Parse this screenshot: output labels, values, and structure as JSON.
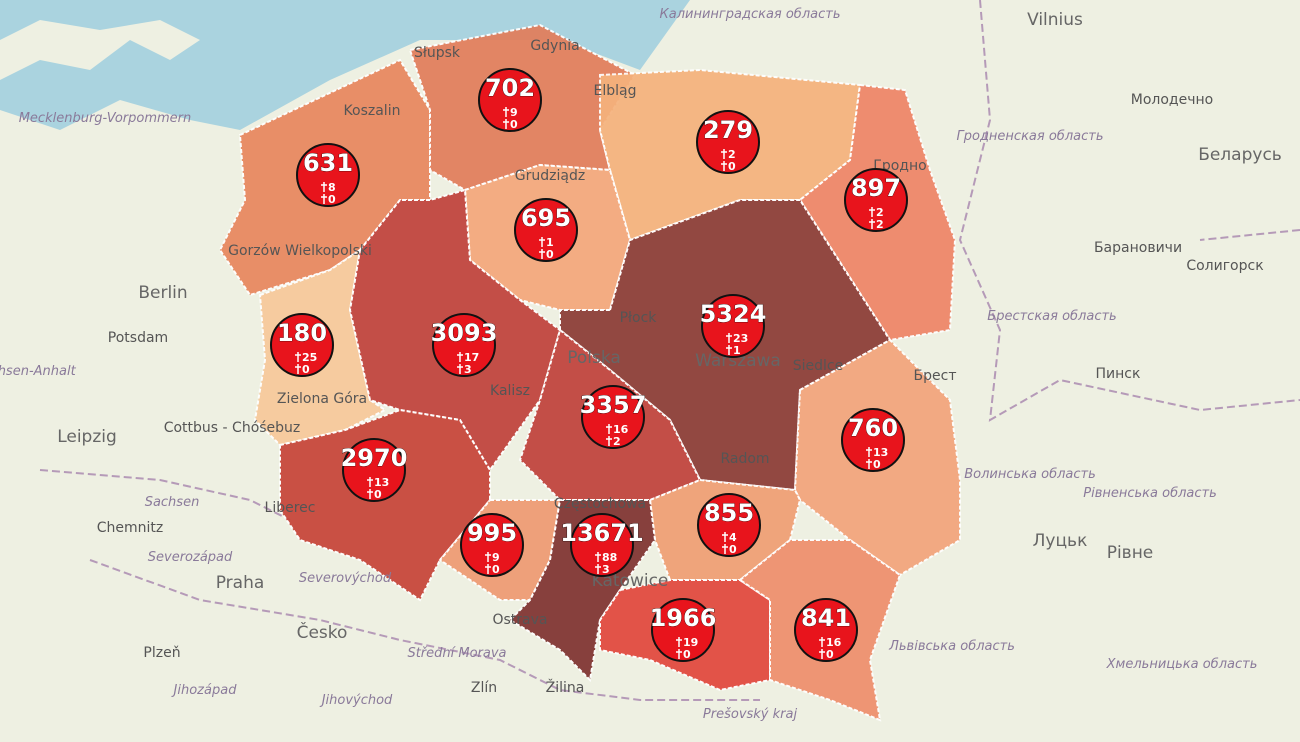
{
  "labels": [
    "Vilnius",
    "Беларусь",
    "Молодечно",
    "Гродненская область",
    "Гродно",
    "Барановичи",
    "Солигорск",
    "Брестская область",
    "Пинск",
    "Брест",
    "Волинська область",
    "Рівненська область",
    "Луцьк",
    "Рівне",
    "Львівська область",
    "Хмельницька область",
    "Калининградская область",
    "Mecklenburg-Vorpommern",
    "Berlin",
    "Potsdam",
    "Sachsen-Anhalt",
    "Leipzig",
    "Cottbus - Chóśebuz",
    "Sachsen",
    "Chemnitz",
    "Severozápad",
    "Praha",
    "Česko",
    "Plzeň",
    "Jihozápad",
    "Jihovýchod",
    "Zlín",
    "Žilina",
    "Střední Morava",
    "Ostrava",
    "Prešovský kraj",
    "Severovýchod",
    "Słupsk",
    "Gdynia",
    "Koszalin",
    "Elbląg",
    "Grudziądz",
    "Płock",
    "Warszawa",
    "Siedlce",
    "Polska",
    "Kalisz",
    "Radom",
    "Zielona Góra",
    "Częstochowa",
    "Katowice",
    "Gorzów Wielkopolski",
    "Liberec"
  ],
  "markers": [
    {
      "cases": 631,
      "deaths": 8,
      "second": 0
    },
    {
      "cases": 702,
      "deaths": 9,
      "second": 0
    },
    {
      "cases": 279,
      "deaths": 2,
      "second": 0
    },
    {
      "cases": 897,
      "deaths": 2,
      "second": 2
    },
    {
      "cases": 695,
      "deaths": 1,
      "second": 0
    },
    {
      "cases": 180,
      "deaths": 25,
      "second": 0
    },
    {
      "cases": 3093,
      "deaths": 17,
      "second": 3
    },
    {
      "cases": 5324,
      "deaths": 23,
      "second": 1
    },
    {
      "cases": 3357,
      "deaths": 16,
      "second": 2
    },
    {
      "cases": 2970,
      "deaths": 13,
      "second": 0
    },
    {
      "cases": 760,
      "deaths": 13,
      "second": 0
    },
    {
      "cases": 855,
      "deaths": 4,
      "second": 0
    },
    {
      "cases": 995,
      "deaths": 9,
      "second": 0
    },
    {
      "cases": 13671,
      "deaths": 88,
      "second": 3
    },
    {
      "cases": 1966,
      "deaths": 19,
      "second": 0
    },
    {
      "cases": 841,
      "deaths": 16,
      "second": 0
    }
  ]
}
